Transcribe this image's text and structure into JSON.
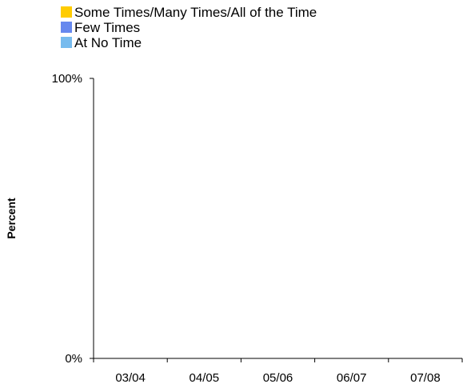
{
  "chart_data": {
    "type": "bar",
    "stacked": true,
    "categories": [
      "03/04",
      "04/05",
      "05/06",
      "06/07",
      "07/08"
    ],
    "series": [
      {
        "name": "Some Times/Many Times/All of the Time",
        "color": "#ffcc00",
        "values": [
          null,
          null,
          null,
          null,
          null
        ]
      },
      {
        "name": "Few Times",
        "color": "#6688ee",
        "values": [
          null,
          null,
          null,
          null,
          null
        ]
      },
      {
        "name": "At No Time",
        "color": "#77bbee",
        "values": [
          null,
          null,
          null,
          null,
          null
        ]
      }
    ],
    "ylabel": "Percent",
    "yticks": [
      "100%",
      "0%"
    ],
    "ylim": [
      0,
      100
    ],
    "grid": false,
    "legend_position": "top-left"
  }
}
